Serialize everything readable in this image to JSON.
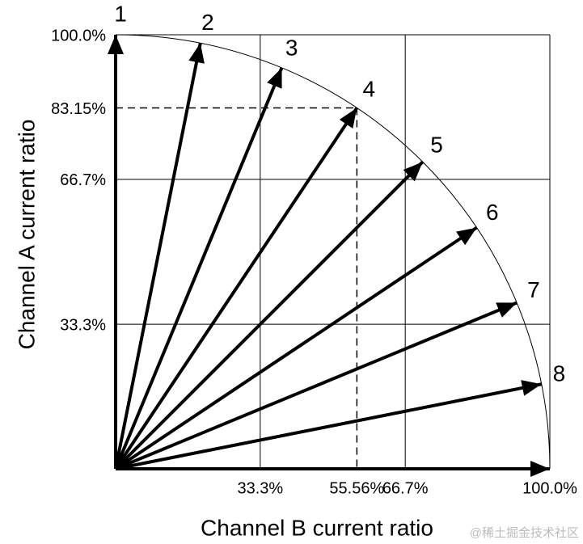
{
  "chart_data": {
    "type": "vector",
    "xlabel": "Channel B current ratio",
    "ylabel": "Channel A current ratio",
    "x": [
      0,
      19.51,
      38.27,
      55.56,
      70.71,
      83.15,
      92.39,
      98.08,
      100
    ],
    "y": [
      100,
      98.08,
      92.39,
      83.15,
      70.71,
      55.56,
      38.27,
      19.51,
      0
    ],
    "labels": [
      "1",
      "2",
      "3",
      "4",
      "5",
      "6",
      "7",
      "8",
      null
    ],
    "xlim": [
      0,
      100
    ],
    "ylim": [
      0,
      100
    ],
    "xticks": [
      {
        "value": 33.3,
        "label": "33.3%"
      },
      {
        "value": 55.56,
        "label": "55.56%"
      },
      {
        "value": 66.7,
        "label": "66.7%"
      },
      {
        "value": 100,
        "label": "100.0%"
      }
    ],
    "yticks": [
      {
        "value": 33.3,
        "label": "33.3%"
      },
      {
        "value": 66.7,
        "label": "66.7%"
      },
      {
        "value": 83.15,
        "label": "83.15%"
      },
      {
        "value": 100,
        "label": "100.0%"
      }
    ],
    "dashed_ticks": [
      55.56,
      83.15
    ],
    "color": "#000000",
    "watermark": "@稀土掘金技术社区"
  }
}
